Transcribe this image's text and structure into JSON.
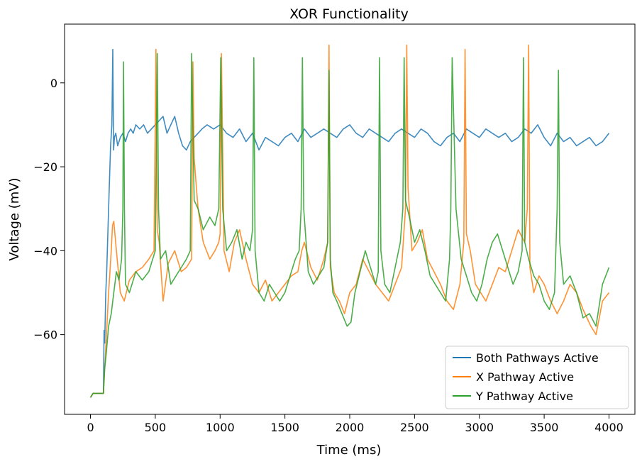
{
  "chart_data": {
    "type": "line",
    "title": "XOR Functionality",
    "xlabel": "Time (ms)",
    "ylabel": "Voltage (mV)",
    "xlim": [
      -200,
      4200
    ],
    "ylim": [
      -79,
      14
    ],
    "xticks": [
      0,
      500,
      1000,
      1500,
      2000,
      2500,
      3000,
      3500,
      4000
    ],
    "yticks": [
      -60,
      -40,
      -20,
      0
    ],
    "xtick_labels": [
      "0",
      "500",
      "1000",
      "1500",
      "2000",
      "2500",
      "3000",
      "3500",
      "4000"
    ],
    "ytick_labels": [
      "−60",
      "−40",
      "−20",
      "0"
    ],
    "grid": false,
    "legend_position": "lower-right",
    "series": [
      {
        "name": "Both Pathways Active",
        "color": "#1f77b4",
        "x": [
          0,
          20,
          50,
          80,
          100,
          105,
          110,
          118,
          125,
          135,
          145,
          155,
          165,
          172,
          178,
          185,
          195,
          210,
          230,
          250,
          270,
          290,
          310,
          330,
          350,
          380,
          410,
          440,
          470,
          500,
          530,
          560,
          590,
          620,
          650,
          680,
          710,
          740,
          770,
          800,
          830,
          860,
          900,
          950,
          1000,
          1050,
          1100,
          1150,
          1200,
          1250,
          1300,
          1350,
          1400,
          1450,
          1500,
          1550,
          1600,
          1650,
          1700,
          1750,
          1800,
          1850,
          1900,
          1950,
          2000,
          2050,
          2100,
          2150,
          2200,
          2250,
          2300,
          2350,
          2400,
          2450,
          2500,
          2550,
          2600,
          2650,
          2700,
          2750,
          2800,
          2850,
          2900,
          2950,
          3000,
          3050,
          3100,
          3150,
          3200,
          3250,
          3300,
          3350,
          3400,
          3450,
          3500,
          3550,
          3600,
          3650,
          3700,
          3750,
          3800,
          3850,
          3900,
          3950,
          4000
        ],
        "y": [
          -75,
          -74,
          -74,
          -74,
          -74,
          -59,
          -62,
          -50,
          -45,
          -35,
          -25,
          -15,
          -10,
          8,
          -16,
          -13,
          -12,
          -15,
          -13,
          -12,
          -14,
          -12,
          -11,
          -12,
          -10,
          -11,
          -10,
          -12,
          -11,
          -10,
          -9,
          -8,
          -12,
          -10,
          -8,
          -12,
          -15,
          -16,
          -14,
          -13,
          -12,
          -11,
          -10,
          -11,
          -10,
          -12,
          -13,
          -11,
          -14,
          -12,
          -16,
          -13,
          -14,
          -15,
          -13,
          -12,
          -14,
          -11,
          -13,
          -12,
          -11,
          -12,
          -13,
          -11,
          -10,
          -12,
          -13,
          -11,
          -12,
          -13,
          -14,
          -12,
          -11,
          -12,
          -13,
          -11,
          -12,
          -14,
          -15,
          -13,
          -12,
          -14,
          -11,
          -12,
          -13,
          -11,
          -12,
          -13,
          -12,
          -14,
          -13,
          -11,
          -12,
          -10,
          -13,
          -15,
          -12,
          -14,
          -13,
          -15,
          -14,
          -13,
          -15,
          -14,
          -12
        ]
      },
      {
        "name": "X Pathway Active",
        "color": "#ff7f0e",
        "x": [
          0,
          20,
          50,
          80,
          100,
          110,
          120,
          130,
          140,
          150,
          160,
          170,
          180,
          200,
          230,
          260,
          300,
          350,
          400,
          450,
          490,
          505,
          515,
          530,
          560,
          600,
          650,
          700,
          740,
          780,
          790,
          800,
          830,
          870,
          920,
          960,
          990,
          1000,
          1010,
          1030,
          1070,
          1110,
          1150,
          1200,
          1250,
          1300,
          1350,
          1400,
          1450,
          1500,
          1550,
          1600,
          1630,
          1650,
          1700,
          1750,
          1800,
          1830,
          1840,
          1850,
          1880,
          1920,
          1960,
          2000,
          2050,
          2100,
          2150,
          2200,
          2250,
          2300,
          2350,
          2400,
          2430,
          2440,
          2450,
          2480,
          2520,
          2560,
          2600,
          2650,
          2700,
          2750,
          2800,
          2850,
          2880,
          2890,
          2900,
          2930,
          2970,
          3010,
          3050,
          3100,
          3150,
          3200,
          3250,
          3300,
          3350,
          3370,
          3380,
          3390,
          3420,
          3460,
          3500,
          3550,
          3600,
          3650,
          3700,
          3750,
          3800,
          3830,
          3860,
          3900,
          3950,
          4000
        ],
        "y": [
          -75,
          -74,
          -74,
          -74,
          -74,
          -68,
          -62,
          -56,
          -50,
          -45,
          -40,
          -34,
          -33,
          -40,
          -50,
          -52,
          -47,
          -45,
          -44,
          -42,
          -40,
          8,
          -35,
          -38,
          -52,
          -43,
          -40,
          -45,
          -44,
          -42,
          5,
          -18,
          -30,
          -38,
          -42,
          -40,
          -38,
          -36,
          7,
          -40,
          -45,
          -38,
          -35,
          -42,
          -48,
          -50,
          -47,
          -52,
          -50,
          -48,
          -46,
          -45,
          -40,
          -38,
          -44,
          -47,
          -42,
          -38,
          9,
          -44,
          -50,
          -52,
          -55,
          -50,
          -48,
          -42,
          -45,
          -48,
          -50,
          -52,
          -48,
          -44,
          -30,
          9,
          -25,
          -40,
          -38,
          -35,
          -42,
          -45,
          -48,
          -52,
          -54,
          -48,
          -38,
          8,
          -36,
          -40,
          -48,
          -50,
          -52,
          -48,
          -44,
          -45,
          -40,
          -35,
          -38,
          -30,
          9,
          -44,
          -50,
          -46,
          -48,
          -52,
          -55,
          -52,
          -48,
          -50,
          -54,
          -56,
          -58,
          -60,
          -52,
          -50
        ]
      },
      {
        "name": "Y Pathway Active",
        "color": "#2ca02c",
        "x": [
          0,
          20,
          50,
          80,
          100,
          110,
          120,
          140,
          160,
          180,
          200,
          220,
          240,
          250,
          255,
          262,
          270,
          300,
          350,
          400,
          450,
          500,
          515,
          525,
          540,
          580,
          620,
          660,
          700,
          740,
          770,
          780,
          800,
          830,
          870,
          920,
          960,
          990,
          1005,
          1020,
          1050,
          1090,
          1130,
          1170,
          1200,
          1230,
          1250,
          1260,
          1270,
          1300,
          1340,
          1380,
          1420,
          1460,
          1500,
          1540,
          1580,
          1610,
          1625,
          1635,
          1645,
          1680,
          1720,
          1760,
          1800,
          1830,
          1840,
          1850,
          1870,
          1900,
          1940,
          1980,
          2010,
          2040,
          2080,
          2120,
          2160,
          2200,
          2220,
          2230,
          2240,
          2270,
          2310,
          2350,
          2390,
          2410,
          2420,
          2430,
          2460,
          2500,
          2540,
          2580,
          2620,
          2660,
          2700,
          2740,
          2770,
          2780,
          2790,
          2820,
          2860,
          2900,
          2940,
          2980,
          3020,
          3060,
          3100,
          3140,
          3180,
          3220,
          3260,
          3300,
          3330,
          3340,
          3350,
          3380,
          3420,
          3460,
          3500,
          3540,
          3580,
          3600,
          3610,
          3620,
          3650,
          3700,
          3750,
          3800,
          3850,
          3900,
          3950,
          4000
        ],
        "y": [
          -75,
          -74,
          -74,
          -74,
          -74,
          -68,
          -65,
          -58,
          -55,
          -50,
          -45,
          -47,
          -42,
          -30,
          5,
          -30,
          -48,
          -50,
          -45,
          -47,
          -45,
          -40,
          7,
          -30,
          -42,
          -40,
          -48,
          -46,
          -44,
          -42,
          -40,
          7,
          -28,
          -30,
          -35,
          -32,
          -34,
          -30,
          6,
          -30,
          -40,
          -38,
          -35,
          -42,
          -38,
          -40,
          -35,
          6,
          -40,
          -50,
          -52,
          -48,
          -50,
          -52,
          -50,
          -46,
          -42,
          -40,
          -30,
          6,
          -30,
          -45,
          -48,
          -46,
          -44,
          -38,
          3,
          -42,
          -50,
          -52,
          -55,
          -58,
          -57,
          -50,
          -45,
          -40,
          -44,
          -48,
          -45,
          6,
          -40,
          -48,
          -50,
          -44,
          -38,
          -30,
          6,
          -28,
          -32,
          -38,
          -35,
          -40,
          -46,
          -48,
          -50,
          -52,
          -42,
          -30,
          6,
          -30,
          -42,
          -46,
          -50,
          -52,
          -48,
          -42,
          -38,
          -36,
          -40,
          -44,
          -48,
          -45,
          -40,
          6,
          -38,
          -42,
          -46,
          -48,
          -52,
          -54,
          -50,
          -30,
          3,
          -38,
          -48,
          -46,
          -50,
          -56,
          -55,
          -58,
          -48,
          -44
        ]
      }
    ]
  }
}
